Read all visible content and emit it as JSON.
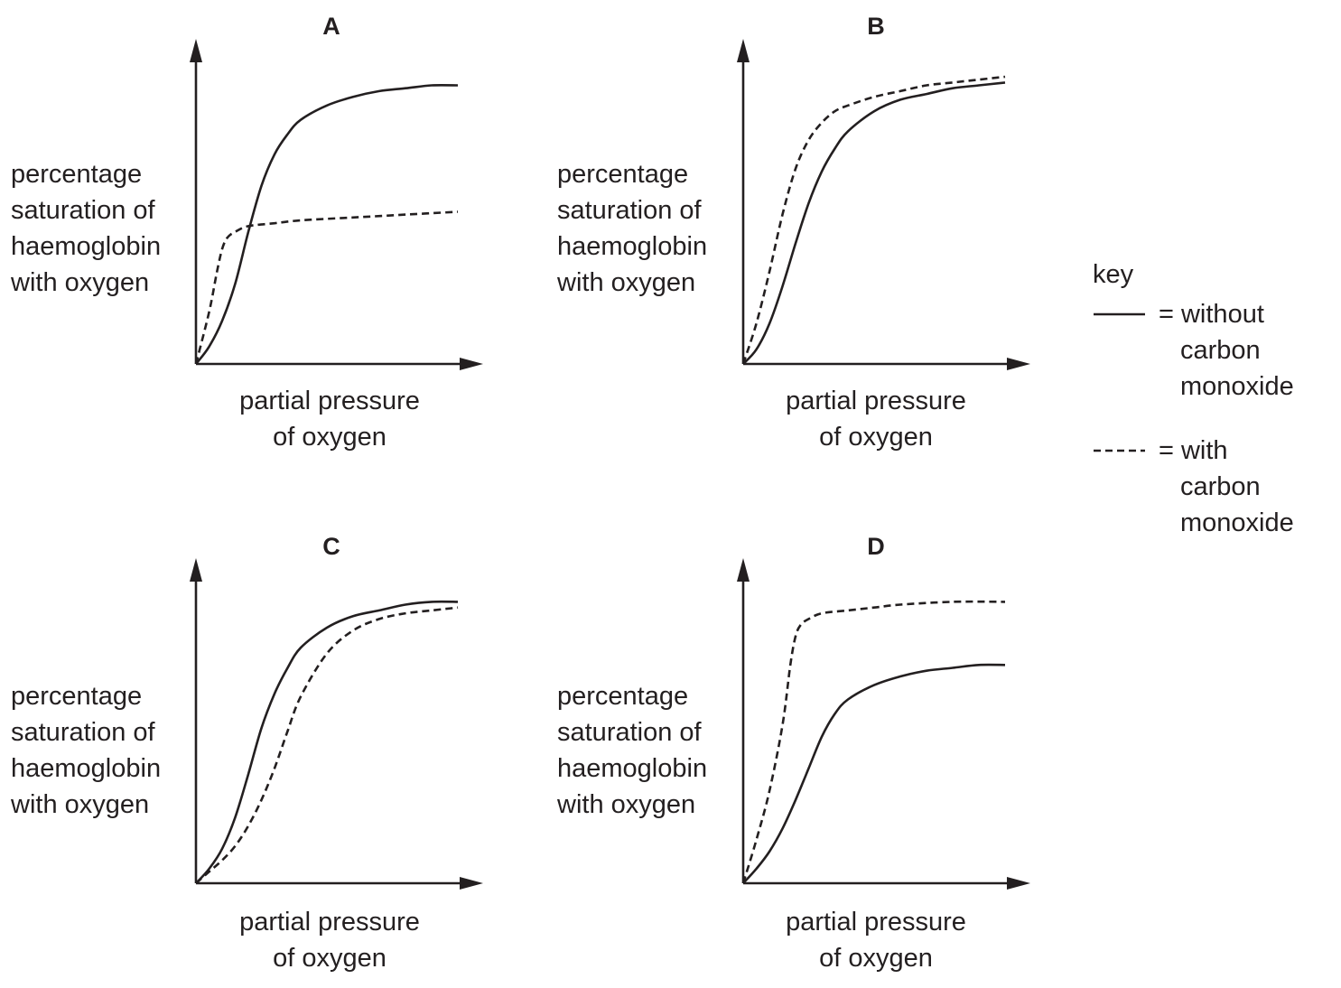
{
  "chart_data": [
    {
      "type": "line",
      "title": "A",
      "ylabel": [
        "percentage",
        "saturation of",
        "haemoglobin",
        "with oxygen"
      ],
      "xlabel": [
        "partial pressure",
        "of oxygen"
      ],
      "xlim": [
        0,
        100
      ],
      "ylim": [
        0,
        100
      ],
      "grid": false,
      "series": [
        {
          "key": "without",
          "style": "solid",
          "x": [
            0,
            5,
            10,
            15,
            20,
            25,
            30,
            35,
            40,
            50,
            60,
            70,
            80,
            90,
            100
          ],
          "y": [
            0,
            6,
            15,
            28,
            46,
            62,
            73,
            80,
            85,
            90,
            93,
            95,
            96,
            97,
            97
          ]
        },
        {
          "key": "with",
          "style": "dashed",
          "x": [
            0,
            5,
            8,
            10,
            12,
            15,
            20,
            30,
            40,
            60,
            80,
            100
          ],
          "y": [
            0,
            18,
            32,
            40,
            44,
            46,
            48,
            49,
            50,
            51,
            52,
            53
          ]
        }
      ]
    },
    {
      "type": "line",
      "title": "B",
      "ylabel": [
        "percentage",
        "saturation of",
        "haemoglobin",
        "with oxygen"
      ],
      "xlabel": [
        "partial pressure",
        "of oxygen"
      ],
      "xlim": [
        0,
        100
      ],
      "ylim": [
        0,
        100
      ],
      "grid": false,
      "series": [
        {
          "key": "without",
          "style": "solid",
          "x": [
            0,
            5,
            10,
            15,
            20,
            25,
            30,
            35,
            40,
            50,
            60,
            70,
            80,
            90,
            100
          ],
          "y": [
            0,
            5,
            14,
            27,
            42,
            56,
            67,
            75,
            81,
            88,
            92,
            94,
            96,
            97,
            98
          ]
        },
        {
          "key": "with",
          "style": "dashed",
          "x": [
            0,
            5,
            10,
            15,
            20,
            25,
            30,
            35,
            40,
            50,
            60,
            70,
            80,
            90,
            100
          ],
          "y": [
            0,
            14,
            32,
            52,
            68,
            78,
            84,
            88,
            90,
            93,
            95,
            97,
            98,
            99,
            100
          ]
        }
      ]
    },
    {
      "type": "line",
      "title": "C",
      "ylabel": [
        "percentage",
        "saturation of",
        "haemoglobin",
        "with oxygen"
      ],
      "xlabel": [
        "partial pressure",
        "of oxygen"
      ],
      "xlim": [
        0,
        100
      ],
      "ylim": [
        0,
        100
      ],
      "grid": false,
      "series": [
        {
          "key": "without",
          "style": "solid",
          "x": [
            0,
            5,
            10,
            15,
            20,
            25,
            30,
            35,
            40,
            50,
            60,
            70,
            80,
            90,
            100
          ],
          "y": [
            0,
            5,
            12,
            23,
            38,
            54,
            66,
            75,
            82,
            89,
            93,
            95,
            97,
            98,
            98
          ]
        },
        {
          "key": "with",
          "style": "dashed",
          "x": [
            0,
            5,
            10,
            15,
            20,
            25,
            30,
            35,
            40,
            50,
            60,
            70,
            80,
            90,
            100
          ],
          "y": [
            0,
            4,
            8,
            13,
            20,
            29,
            40,
            53,
            65,
            80,
            88,
            92,
            94,
            95,
            96
          ]
        }
      ]
    },
    {
      "type": "line",
      "title": "D",
      "ylabel": [
        "percentage",
        "saturation of",
        "haemoglobin",
        "with oxygen"
      ],
      "xlabel": [
        "partial pressure",
        "of oxygen"
      ],
      "xlim": [
        0,
        100
      ],
      "ylim": [
        0,
        100
      ],
      "grid": false,
      "series": [
        {
          "key": "without",
          "style": "solid",
          "x": [
            0,
            5,
            10,
            15,
            20,
            25,
            30,
            35,
            40,
            50,
            60,
            70,
            80,
            90,
            100
          ],
          "y": [
            0,
            5,
            11,
            19,
            29,
            40,
            51,
            59,
            64,
            69,
            72,
            74,
            75,
            76,
            76
          ]
        },
        {
          "key": "with",
          "style": "dashed",
          "x": [
            0,
            5,
            10,
            15,
            18,
            20,
            22,
            25,
            30,
            40,
            50,
            60,
            80,
            100
          ],
          "y": [
            0,
            15,
            32,
            55,
            76,
            86,
            90,
            92,
            94,
            95,
            96,
            97,
            98,
            98
          ]
        }
      ]
    }
  ],
  "key": {
    "title": "key",
    "entries": [
      {
        "style": "solid",
        "lines": [
          "= without",
          "carbon",
          "monoxide"
        ]
      },
      {
        "style": "dashed",
        "lines": [
          "= with",
          "carbon",
          "monoxide"
        ]
      }
    ]
  }
}
